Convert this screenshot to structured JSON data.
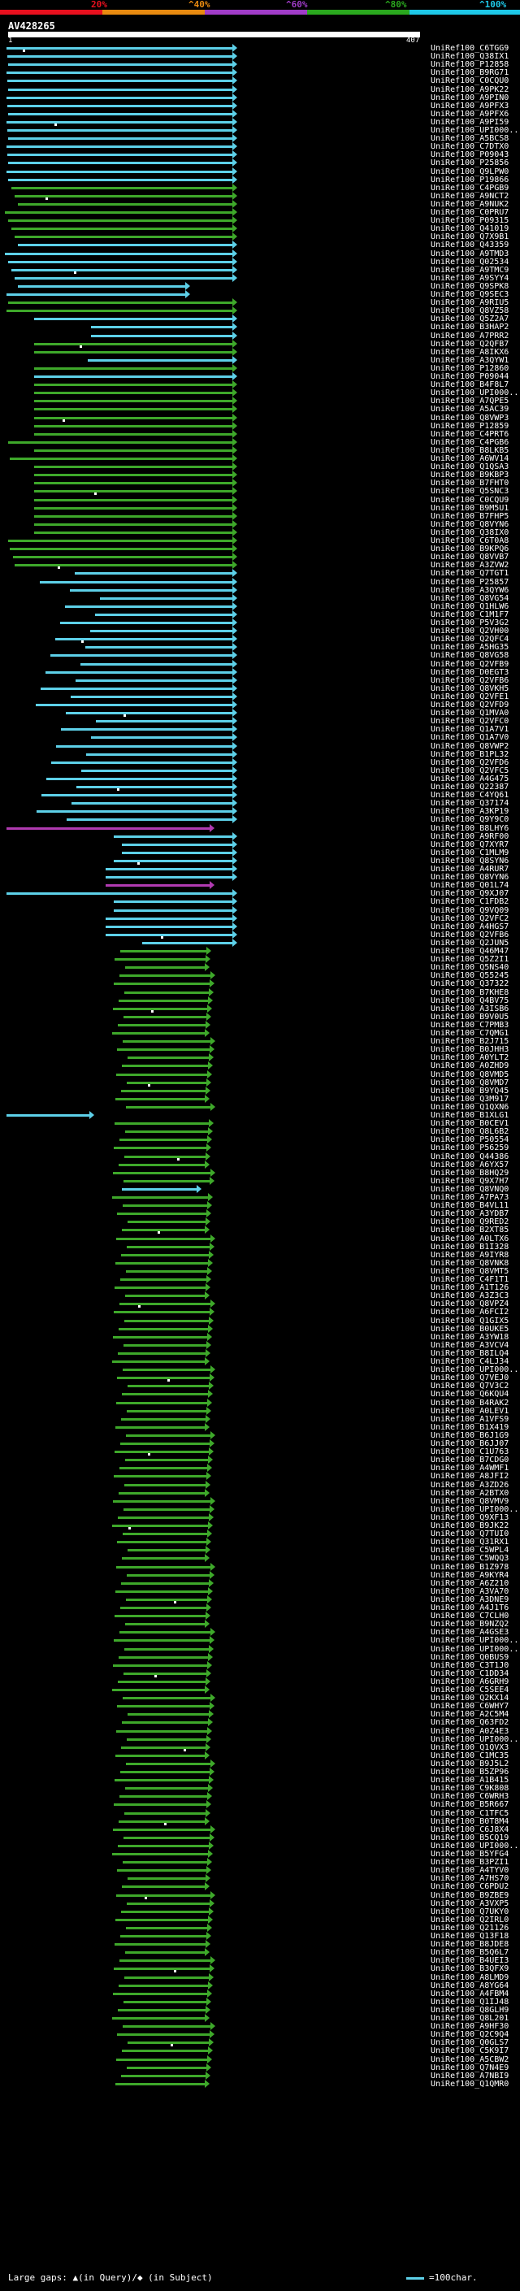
{
  "colors": {
    "bin0": "#e8101e",
    "bin1": "#e88a10",
    "bin2": "#a03cc8",
    "bin3": "#2aa81e",
    "bin4": "#1ec8e8",
    "line_green": "#3ea82a",
    "line_cyan": "#5dd0e8",
    "line_magenta": "#b03ab0"
  },
  "scale": {
    "labels": [
      "20%",
      "^40%",
      "^60%",
      "^80%",
      "^100%"
    ]
  },
  "query": {
    "name": "AV428265",
    "start": "1",
    "end": "407"
  },
  "footer": {
    "large_gaps": "Large gaps: ▲(in Query)/◆ (in Subject)",
    "legend": "=100char."
  },
  "hits": [
    "UniRef100_C6TGG9",
    "UniRef100_Q38IX1",
    "UniRef100_P12858",
    "UniRef100_B9RG71",
    "UniRef100_C0CQU0",
    "UniRef100_A9PK22",
    "UniRef100_A9PIN0",
    "UniRef100_A9PFX3",
    "UniRef100_A9PFX6",
    "UniRef100_A9PI59",
    "UniRef100_UPI000...",
    "UniRef100_A5BCS8",
    "UniRef100_C7DTX0",
    "UniRef100_P09043",
    "UniRef100_P25856",
    "UniRef100_Q9LPW0",
    "UniRef100_P19866",
    "UniRef100_C4PGB9",
    "UniRef100_A9NCT2",
    "UniRef100_A9NUK2",
    "UniRef100_C0PRU7",
    "UniRef100_P09315",
    "UniRef100_Q41019",
    "UniRef100_Q7X9B1",
    "UniRef100_Q43359",
    "UniRef100_A9TMD3",
    "UniRef100_Q02534",
    "UniRef100_A9TMC9",
    "UniRef100_A9SYY4",
    "UniRef100_Q9SPK8",
    "UniRef100_Q9SEC3",
    "UniRef100_A9RIU5",
    "UniRef100_Q8VZ58",
    "UniRef100_Q5Z2A7",
    "UniRef100_B3HAP2",
    "UniRef100_A7PRR2",
    "UniRef100_Q2QFB7",
    "UniRef100_A8IKX6",
    "UniRef100_A3QYW1",
    "UniRef100_P12860",
    "UniRef100_P09044",
    "UniRef100_B4F8L7",
    "UniRef100_UPI000...",
    "UniRef100_A7QPE5",
    "UniRef100_A5AC39",
    "UniRef100_Q8VWP3",
    "UniRef100_P12859",
    "UniRef100_C4PRT6",
    "UniRef100_C4PGB6",
    "UniRef100_B8LKB5",
    "UniRef100_A6WV14",
    "UniRef100_Q1QSA3",
    "UniRef100_B9KBP3",
    "UniRef100_B7FHT0",
    "UniRef100_Q5SNC3",
    "UniRef100_C0CQU9",
    "UniRef100_B9M5U1",
    "UniRef100_B7FHP5",
    "UniRef100_Q8VYN6",
    "UniRef100_Q38IX0",
    "UniRef100_C6T0A8",
    "UniRef100_B9KPQ6",
    "UniRef100_Q8VVB7",
    "UniRef100_A3ZVW2",
    "UniRef100_Q7TGT1",
    "UniRef100_P25857",
    "UniRef100_A3QYW6",
    "UniRef100_Q8VG54",
    "UniRef100_Q1HLW6",
    "UniRef100_C1M1F7",
    "UniRef100_P5V3G2",
    "UniRef100_Q2VH00",
    "UniRef100_Q2QFC4",
    "UniRef100_A5HG35",
    "UniRef100_Q8VG58",
    "UniRef100_Q2VFB9",
    "UniRef100_D0EGT3",
    "UniRef100_Q2VFB6",
    "UniRef100_Q8VKH5",
    "UniRef100_Q2VFE1",
    "UniRef100_Q2VFD9",
    "UniRef100_Q1MVA0",
    "UniRef100_Q2VFC0",
    "UniRef100_Q1A7V1",
    "UniRef100_Q1A7V0",
    "UniRef100_Q8VWP2",
    "UniRef100_B1PL32",
    "UniRef100_Q2VFD6",
    "UniRef100_Q2VFC5",
    "UniRef100_A4G475",
    "UniRef100_Q22387",
    "UniRef100_C4YQ61",
    "UniRef100_Q37174",
    "UniRef100_A3KP19",
    "UniRef100_Q9Y9C0",
    "UniRef100_B8LHY6",
    "UniRef100_A9RF00",
    "UniRef100_Q7XYR7",
    "UniRef100_C1MLM9",
    "UniRef100_Q8SYN6",
    "UniRef100_A4RUR7",
    "UniRef100_Q8VYN6",
    "UniRef100_Q01L74",
    "UniRef100_Q9XJ07",
    "UniRef100_C1FDB2",
    "UniRef100_Q9VQ09",
    "UniRef100_Q2VFC2",
    "UniRef100_A4HGS7",
    "UniRef100_Q2VFB6",
    "UniRef100_Q2JUN5",
    "UniRef100_Q46M47",
    "UniRef100_Q5Z2I1",
    "UniRef100_Q5NS40",
    "UniRef100_Q55245",
    "UniRef100_Q37322",
    "UniRef100_B7KHE8",
    "UniRef100_Q4BV75",
    "UniRef100_A3ISB6",
    "UniRef100_B9V0U5",
    "UniRef100_C7PMB3",
    "UniRef100_C7QMG1",
    "UniRef100_B2J715",
    "UniRef100_B0JHH3",
    "UniRef100_A0YLT2",
    "UniRef100_A0ZHD9",
    "UniRef100_Q8VMD5",
    "UniRef100_Q8VMD7",
    "UniRef100_B9YQ45",
    "UniRef100_Q3M917",
    "UniRef100_Q1QXN6",
    "UniRef100_B1XLG1",
    "UniRef100_B0CEV1",
    "UniRef100_Q8L6B2",
    "UniRef100_P50554",
    "UniRef100_P56259",
    "UniRef100_Q44386",
    "UniRef100_A6YX57",
    "UniRef100_B8HQ29",
    "UniRef100_Q9X7H7",
    "UniRef100_Q8VNQ0",
    "UniRef100_A7PA73",
    "UniRef100_B4VL11",
    "UniRef100_A3YDB7",
    "UniRef100_Q9RED2",
    "UniRef100_B2XT85",
    "UniRef100_A0LTX6",
    "UniRef100_B1I328",
    "UniRef100_A9IYR8",
    "UniRef100_Q8VNK8",
    "UniRef100_Q8VMT5",
    "UniRef100_C4F1T1",
    "UniRef100_A1T126",
    "UniRef100_A3Z3C3",
    "UniRef100_Q8VPZ4",
    "UniRef100_A6FCI2",
    "UniRef100_Q1GIX5",
    "UniRef100_B0UKE5",
    "UniRef100_A3YW18",
    "UniRef100_A3VCV4",
    "UniRef100_B8ILQ4",
    "UniRef100_C4LJ34",
    "UniRef100_UPI000...",
    "UniRef100_Q7VEJ0",
    "UniRef100_Q7V3C2",
    "UniRef100_Q6KQU4",
    "UniRef100_B4RAK2",
    "UniRef100_A0LEV1",
    "UniRef100_A1VFS9",
    "UniRef100_B1X419",
    "UniRef100_B6J1G9",
    "UniRef100_B6JJ07",
    "UniRef100_C1U763",
    "UniRef100_B7CDG0",
    "UniRef100_A4WMF1",
    "UniRef100_A8JFI2",
    "UniRef100_A3ZD26",
    "UniRef100_A2BTX0",
    "UniRef100_Q8VMV9",
    "UniRef100_UPI000...",
    "UniRef100_Q9XF13",
    "UniRef100_B9JK22",
    "UniRef100_Q7TUI0",
    "UniRef100_Q31RX1",
    "UniRef100_C5WPL4",
    "UniRef100_C5WQQ3",
    "UniRef100_B1Z978",
    "UniRef100_A9KYR4",
    "UniRef100_A6Z210",
    "UniRef100_A3VA70",
    "UniRef100_A3DNE9",
    "UniRef100_A4J1T6",
    "UniRef100_C7CLH0",
    "UniRef100_B9NZQ2",
    "UniRef100_A4GSE3",
    "UniRef100_UPI000...",
    "UniRef100_UPI000...",
    "UniRef100_Q0BUS9",
    "UniRef100_C3T1J0",
    "UniRef100_C1DD34",
    "UniRef100_A6GRH9",
    "UniRef100_C5SEE4",
    "UniRef100_Q2KX14",
    "UniRef100_C6WHY7",
    "UniRef100_A2C5M4",
    "UniRef100_Q63FD2",
    "UniRef100_A0Z4E3",
    "UniRef100_UPI000...",
    "UniRef100_Q1QVX3",
    "UniRef100_C1MC35",
    "UniRef100_B9J5L2",
    "UniRef100_B5ZP96",
    "UniRef100_A1B415",
    "UniRef100_C9K808",
    "UniRef100_C6WRH3",
    "UniRef100_B5R667",
    "UniRef100_C1TFC5",
    "UniRef100_B0T8M4",
    "UniRef100_C6J8X4",
    "UniRef100_B5CQ19",
    "UniRef100_UPI000...",
    "UniRef100_B5YFG4",
    "UniRef100_B3PZI1",
    "UniRef100_A4TYV0",
    "UniRef100_A7HS70",
    "UniRef100_C6PDU2",
    "UniRef100_B9ZBE9",
    "UniRef100_A3VXP5",
    "UniRef100_Q7UKY0",
    "UniRef100_Q2IRL0",
    "UniRef100_Q21126",
    "UniRef100_Q13F18",
    "UniRef100_B8JDE8",
    "UniRef100_B5Q6L7",
    "UniRef100_B4UEI3",
    "UniRef100_B3QFX9",
    "UniRef100_A8LMD9",
    "UniRef100_A8YG64",
    "UniRef100_A4FBM4",
    "UniRef100_Q1IJ48",
    "UniRef100_Q8GLH9",
    "UniRef100_Q8L201",
    "UniRef100_A9HF30",
    "UniRef100_Q2C9Q4",
    "UniRef100_Q0GLS7",
    "UniRef100_C5K9I7",
    "UniRef100_A5CBW2",
    "UniRef100_Q7N4E9",
    "UniRef100_A7NBI9",
    "UniRef100_Q1QMR0"
  ]
}
